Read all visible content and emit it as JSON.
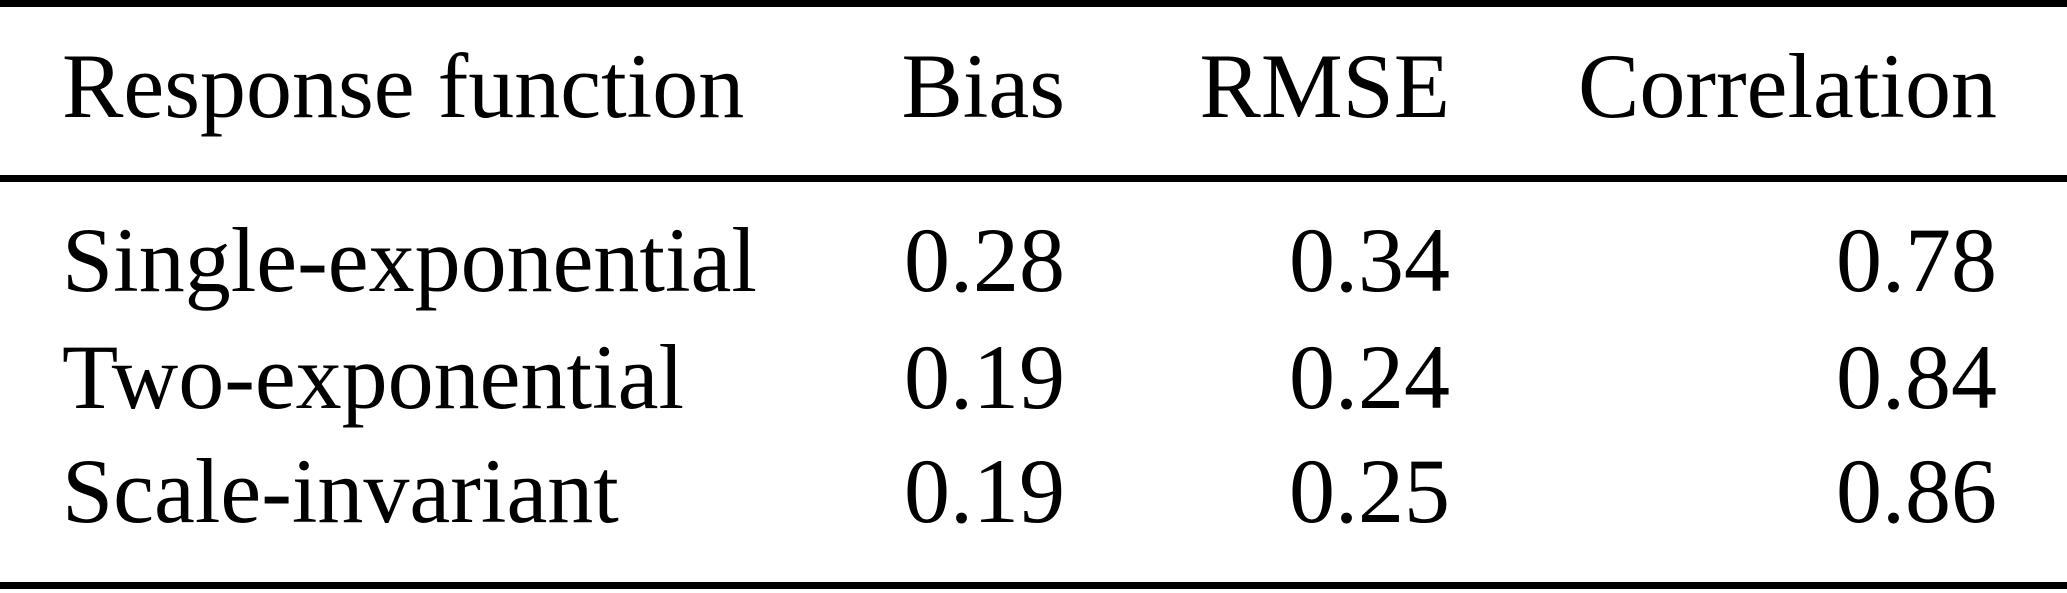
{
  "meta": {
    "background_color": "#ffffff",
    "text_color": "#000000",
    "rule_color": "#000000"
  },
  "table": {
    "columns": [
      "Response function",
      "Bias",
      "RMSE",
      "Correlation"
    ],
    "rows": [
      [
        "Single-exponential",
        "0.28",
        "0.34",
        "0.78"
      ],
      [
        "Two-exponential",
        "0.19",
        "0.24",
        "0.84"
      ],
      [
        "Scale-invariant",
        "0.19",
        "0.25",
        "0.86"
      ]
    ]
  }
}
